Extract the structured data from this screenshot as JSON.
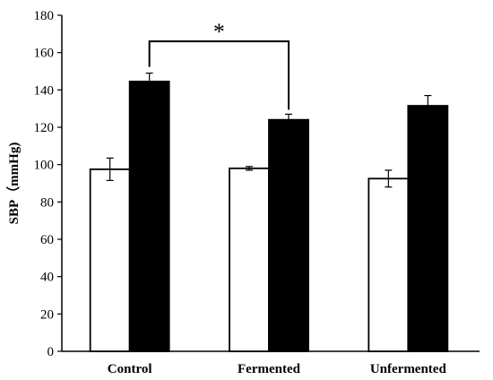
{
  "chart_data": {
    "type": "bar",
    "ylabel": "SBP（mmHg)",
    "xlabel": "",
    "ylim": [
      0,
      180
    ],
    "yticks": [
      0,
      20,
      40,
      60,
      80,
      100,
      120,
      140,
      160,
      180
    ],
    "yticklabels": [
      "0",
      "20",
      "40",
      "60",
      "80",
      "100",
      "120",
      "140",
      "160",
      "180"
    ],
    "categories": [
      "Control",
      "Fermented",
      "Unfermented"
    ],
    "grid": false,
    "series": [
      {
        "fill": "#ffffff",
        "values": [
          97.5,
          98,
          92.5
        ],
        "errors": [
          6,
          1,
          4.5
        ]
      },
      {
        "fill": "#000000",
        "values": [
          144.5,
          124,
          131.5
        ],
        "errors": [
          4.5,
          3,
          5.5
        ]
      }
    ],
    "annotations": [
      {
        "text": "*",
        "from_category": "Control",
        "to_category": "Fermented",
        "bracket_y": 166
      }
    ]
  }
}
